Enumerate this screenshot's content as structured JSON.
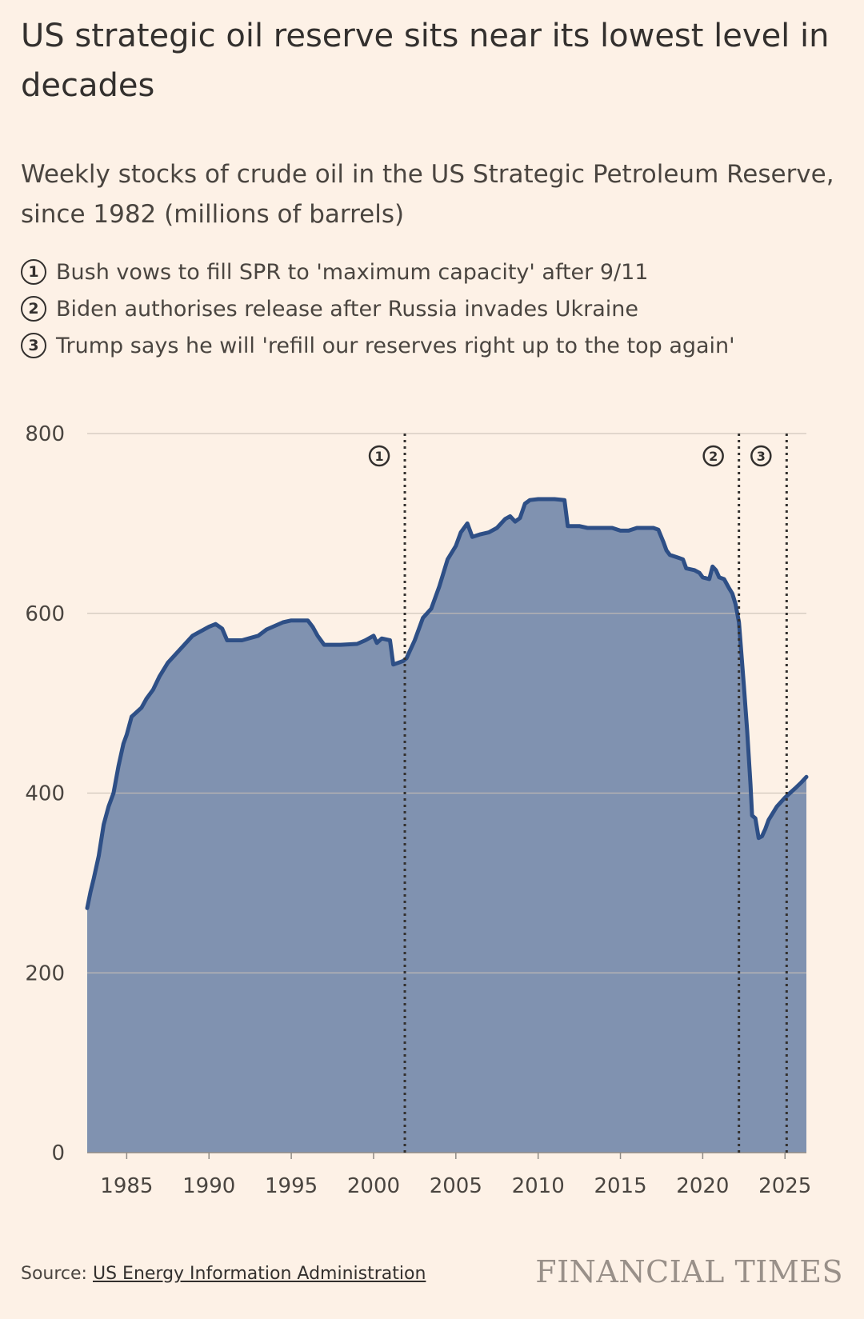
{
  "title": "US strategic oil reserve sits near its lowest level in decades",
  "subtitle": "Weekly stocks of crude oil in the US Strategic Petroleum Reserve, since 1982 (millions of barrels)",
  "annotations": [
    {
      "num": "1",
      "text": "Bush vows to fill SPR to 'maximum capacity' after 9/11"
    },
    {
      "num": "2",
      "text": "Biden authorises release after Russia invades Ukraine"
    },
    {
      "num": "3",
      "text": "Trump says he will 'refill our reserves right up to the top again'"
    }
  ],
  "source": {
    "label": "Source:",
    "link_text": "US Energy Information Administration"
  },
  "logo": "FINANCIAL TIMES",
  "colors": {
    "area_fill": "#8092b0",
    "line": "#2e4f86",
    "grid": "#c9bfb5",
    "background": "#fdf1e6"
  },
  "chart_data": {
    "type": "area",
    "title": "",
    "xlabel": "",
    "ylabel": "",
    "ylim": [
      0,
      800
    ],
    "xlim": [
      1982.6,
      2026.3
    ],
    "yticks": [
      0,
      200,
      400,
      600,
      800
    ],
    "xticks": [
      1985,
      1990,
      1995,
      2000,
      2005,
      2010,
      2015,
      2020,
      2025
    ],
    "grid": true,
    "markers": [
      {
        "label": "1",
        "x": 2001.9
      },
      {
        "label": "2",
        "x": 2022.2
      },
      {
        "label": "3",
        "x": 2025.1
      }
    ],
    "series": [
      {
        "x": [
          1982.6,
          1982.8,
          1983.0,
          1983.3,
          1983.6,
          1983.9,
          1984.2,
          1984.5,
          1984.8,
          1985.0,
          1985.3,
          1985.6,
          1985.9,
          1986.2,
          1986.6,
          1987.0,
          1987.5,
          1988.0,
          1988.5,
          1989.0,
          1989.5,
          1990.0,
          1990.4,
          1990.8,
          1991.1,
          1991.3,
          1992.0,
          1993.0,
          1993.5,
          1994.0,
          1994.5,
          1995.0,
          1996.0,
          1996.3,
          1996.6,
          1997.0,
          1998.0,
          1999.0,
          1999.5,
          2000.0,
          2000.2,
          2000.5,
          2001.0,
          2001.2,
          2001.5,
          2001.8,
          2002.0,
          2002.5,
          2003.0,
          2003.5,
          2004.0,
          2004.5,
          2005.0,
          2005.3,
          2005.7,
          2006.0,
          2006.5,
          2007.0,
          2007.5,
          2008.0,
          2008.3,
          2008.6,
          2008.9,
          2009.2,
          2009.5,
          2010.0,
          2011.0,
          2011.6,
          2011.8,
          2012.5,
          2013.0,
          2014.0,
          2014.5,
          2015.0,
          2015.5,
          2016.0,
          2017.0,
          2017.3,
          2017.6,
          2017.8,
          2018.0,
          2018.5,
          2018.8,
          2019.0,
          2019.5,
          2019.8,
          2020.0,
          2020.4,
          2020.6,
          2020.8,
          2021.0,
          2021.3,
          2021.6,
          2021.8,
          2022.0,
          2022.2,
          2022.5,
          2022.7,
          2022.9,
          2023.0,
          2023.2,
          2023.4,
          2023.6,
          2023.8,
          2024.0,
          2024.5,
          2025.0,
          2025.3,
          2025.6,
          2026.0,
          2026.3
        ],
        "values": [
          272,
          290,
          305,
          330,
          365,
          385,
          400,
          430,
          455,
          465,
          485,
          490,
          495,
          505,
          515,
          530,
          545,
          555,
          565,
          575,
          580,
          585,
          588,
          583,
          570,
          570,
          570,
          575,
          582,
          586,
          590,
          592,
          592,
          585,
          575,
          565,
          565,
          566,
          570,
          575,
          567,
          572,
          570,
          543,
          545,
          547,
          550,
          570,
          595,
          605,
          630,
          660,
          675,
          690,
          700,
          685,
          688,
          690,
          695,
          705,
          708,
          702,
          706,
          722,
          726,
          727,
          727,
          726,
          697,
          697,
          695,
          695,
          695,
          692,
          692,
          695,
          695,
          693,
          680,
          670,
          665,
          662,
          660,
          650,
          648,
          645,
          640,
          638,
          652,
          648,
          640,
          638,
          628,
          622,
          610,
          590,
          520,
          470,
          410,
          375,
          372,
          350,
          352,
          360,
          370,
          385,
          395,
          400,
          405,
          412,
          418
        ]
      }
    ]
  }
}
